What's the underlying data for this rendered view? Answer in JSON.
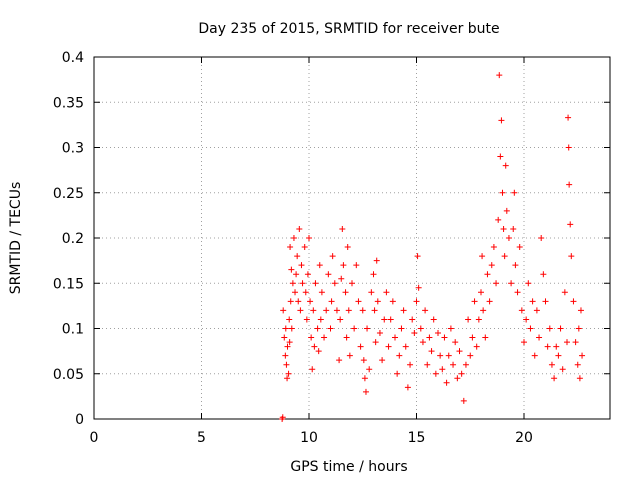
{
  "chart_data": {
    "type": "scatter",
    "title": "Day 235 of 2015, SRMTID for receiver bute",
    "xlabel": "GPS time / hours",
    "ylabel": "SRMTID / TECUs",
    "xlim": [
      0,
      24
    ],
    "ylim": [
      0,
      0.4
    ],
    "x_ticks": [
      0,
      5,
      10,
      15,
      20
    ],
    "x_tick_labels": [
      "0",
      "5",
      "10",
      "15",
      "20"
    ],
    "y_ticks": [
      0,
      0.05,
      0.1,
      0.15,
      0.2,
      0.25,
      0.3,
      0.35,
      0.4
    ],
    "y_tick_labels": [
      "0",
      "0.05",
      "0.1",
      "0.15",
      "0.2",
      "0.25",
      "0.3",
      "0.35",
      "0.4"
    ],
    "grid": true,
    "marker": "+",
    "colors": {
      "points": "#ff0000",
      "grid": "#a0a0a0",
      "axis": "#000000"
    },
    "series": [
      {
        "name": "SRMTID",
        "points": [
          [
            8.75,
            0.0
          ],
          [
            8.78,
            0.002
          ],
          [
            8.8,
            0.12
          ],
          [
            8.85,
            0.09
          ],
          [
            8.9,
            0.07
          ],
          [
            8.92,
            0.1
          ],
          [
            8.95,
            0.06
          ],
          [
            8.98,
            0.045
          ],
          [
            9.0,
            0.08
          ],
          [
            9.05,
            0.05
          ],
          [
            9.08,
            0.11
          ],
          [
            9.1,
            0.085
          ],
          [
            9.12,
            0.19
          ],
          [
            9.15,
            0.13
          ],
          [
            9.18,
            0.165
          ],
          [
            9.2,
            0.1
          ],
          [
            9.25,
            0.15
          ],
          [
            9.3,
            0.2
          ],
          [
            9.35,
            0.14
          ],
          [
            9.4,
            0.16
          ],
          [
            9.45,
            0.18
          ],
          [
            9.5,
            0.13
          ],
          [
            9.55,
            0.21
          ],
          [
            9.6,
            0.12
          ],
          [
            9.65,
            0.17
          ],
          [
            9.7,
            0.15
          ],
          [
            9.8,
            0.19
          ],
          [
            9.85,
            0.14
          ],
          [
            9.9,
            0.11
          ],
          [
            9.95,
            0.16
          ],
          [
            10.0,
            0.2
          ],
          [
            10.05,
            0.13
          ],
          [
            10.1,
            0.09
          ],
          [
            10.15,
            0.055
          ],
          [
            10.2,
            0.12
          ],
          [
            10.25,
            0.08
          ],
          [
            10.3,
            0.15
          ],
          [
            10.4,
            0.1
          ],
          [
            10.45,
            0.075
          ],
          [
            10.5,
            0.17
          ],
          [
            10.55,
            0.11
          ],
          [
            10.6,
            0.14
          ],
          [
            10.7,
            0.09
          ],
          [
            10.8,
            0.12
          ],
          [
            10.9,
            0.16
          ],
          [
            11.0,
            0.1
          ],
          [
            11.05,
            0.13
          ],
          [
            11.1,
            0.18
          ],
          [
            11.2,
            0.15
          ],
          [
            11.3,
            0.12
          ],
          [
            11.4,
            0.065
          ],
          [
            11.45,
            0.11
          ],
          [
            11.5,
            0.155
          ],
          [
            11.55,
            0.21
          ],
          [
            11.6,
            0.17
          ],
          [
            11.7,
            0.14
          ],
          [
            11.75,
            0.09
          ],
          [
            11.8,
            0.19
          ],
          [
            11.85,
            0.12
          ],
          [
            11.9,
            0.07
          ],
          [
            12.0,
            0.15
          ],
          [
            12.1,
            0.1
          ],
          [
            12.2,
            0.17
          ],
          [
            12.3,
            0.13
          ],
          [
            12.4,
            0.08
          ],
          [
            12.5,
            0.12
          ],
          [
            12.55,
            0.065
          ],
          [
            12.6,
            0.045
          ],
          [
            12.65,
            0.03
          ],
          [
            12.7,
            0.1
          ],
          [
            12.8,
            0.055
          ],
          [
            12.9,
            0.14
          ],
          [
            13.0,
            0.16
          ],
          [
            13.05,
            0.12
          ],
          [
            13.1,
            0.085
          ],
          [
            13.15,
            0.175
          ],
          [
            13.2,
            0.13
          ],
          [
            13.3,
            0.095
          ],
          [
            13.4,
            0.065
          ],
          [
            13.5,
            0.11
          ],
          [
            13.6,
            0.14
          ],
          [
            13.7,
            0.08
          ],
          [
            13.8,
            0.11
          ],
          [
            13.9,
            0.13
          ],
          [
            14.0,
            0.09
          ],
          [
            14.1,
            0.05
          ],
          [
            14.2,
            0.07
          ],
          [
            14.3,
            0.1
          ],
          [
            14.4,
            0.12
          ],
          [
            14.5,
            0.08
          ],
          [
            14.6,
            0.035
          ],
          [
            14.7,
            0.06
          ],
          [
            14.8,
            0.11
          ],
          [
            14.9,
            0.095
          ],
          [
            15.0,
            0.13
          ],
          [
            15.05,
            0.18
          ],
          [
            15.1,
            0.145
          ],
          [
            15.2,
            0.1
          ],
          [
            15.3,
            0.085
          ],
          [
            15.4,
            0.12
          ],
          [
            15.5,
            0.06
          ],
          [
            15.6,
            0.09
          ],
          [
            15.7,
            0.075
          ],
          [
            15.8,
            0.11
          ],
          [
            15.9,
            0.05
          ],
          [
            16.0,
            0.095
          ],
          [
            16.1,
            0.07
          ],
          [
            16.2,
            0.055
          ],
          [
            16.3,
            0.09
          ],
          [
            16.4,
            0.04
          ],
          [
            16.5,
            0.07
          ],
          [
            16.6,
            0.1
          ],
          [
            16.7,
            0.06
          ],
          [
            16.8,
            0.085
          ],
          [
            16.9,
            0.045
          ],
          [
            17.0,
            0.075
          ],
          [
            17.1,
            0.05
          ],
          [
            17.2,
            0.02
          ],
          [
            17.3,
            0.06
          ],
          [
            17.4,
            0.11
          ],
          [
            17.5,
            0.07
          ],
          [
            17.6,
            0.09
          ],
          [
            17.7,
            0.13
          ],
          [
            17.8,
            0.08
          ],
          [
            17.9,
            0.11
          ],
          [
            18.0,
            0.14
          ],
          [
            18.05,
            0.18
          ],
          [
            18.1,
            0.12
          ],
          [
            18.2,
            0.09
          ],
          [
            18.3,
            0.16
          ],
          [
            18.4,
            0.13
          ],
          [
            18.5,
            0.17
          ],
          [
            18.6,
            0.19
          ],
          [
            18.7,
            0.15
          ],
          [
            18.8,
            0.22
          ],
          [
            18.85,
            0.38
          ],
          [
            18.9,
            0.29
          ],
          [
            18.95,
            0.33
          ],
          [
            19.0,
            0.25
          ],
          [
            19.05,
            0.21
          ],
          [
            19.1,
            0.18
          ],
          [
            19.15,
            0.28
          ],
          [
            19.2,
            0.23
          ],
          [
            19.3,
            0.2
          ],
          [
            19.4,
            0.15
          ],
          [
            19.5,
            0.21
          ],
          [
            19.55,
            0.25
          ],
          [
            19.6,
            0.17
          ],
          [
            19.7,
            0.14
          ],
          [
            19.8,
            0.19
          ],
          [
            19.9,
            0.12
          ],
          [
            20.0,
            0.085
          ],
          [
            20.1,
            0.11
          ],
          [
            20.2,
            0.15
          ],
          [
            20.3,
            0.1
          ],
          [
            20.4,
            0.13
          ],
          [
            20.5,
            0.07
          ],
          [
            20.6,
            0.12
          ],
          [
            20.7,
            0.09
          ],
          [
            20.8,
            0.2
          ],
          [
            20.9,
            0.16
          ],
          [
            21.0,
            0.13
          ],
          [
            21.1,
            0.08
          ],
          [
            21.2,
            0.1
          ],
          [
            21.3,
            0.06
          ],
          [
            21.4,
            0.045
          ],
          [
            21.5,
            0.08
          ],
          [
            21.6,
            0.07
          ],
          [
            21.7,
            0.1
          ],
          [
            21.8,
            0.055
          ],
          [
            21.9,
            0.14
          ],
          [
            22.0,
            0.085
          ],
          [
            22.05,
            0.333
          ],
          [
            22.08,
            0.3
          ],
          [
            22.1,
            0.259
          ],
          [
            22.15,
            0.215
          ],
          [
            22.2,
            0.18
          ],
          [
            22.3,
            0.13
          ],
          [
            22.4,
            0.085
          ],
          [
            22.5,
            0.06
          ],
          [
            22.55,
            0.1
          ],
          [
            22.6,
            0.045
          ],
          [
            22.65,
            0.12
          ],
          [
            22.7,
            0.07
          ]
        ]
      }
    ]
  }
}
